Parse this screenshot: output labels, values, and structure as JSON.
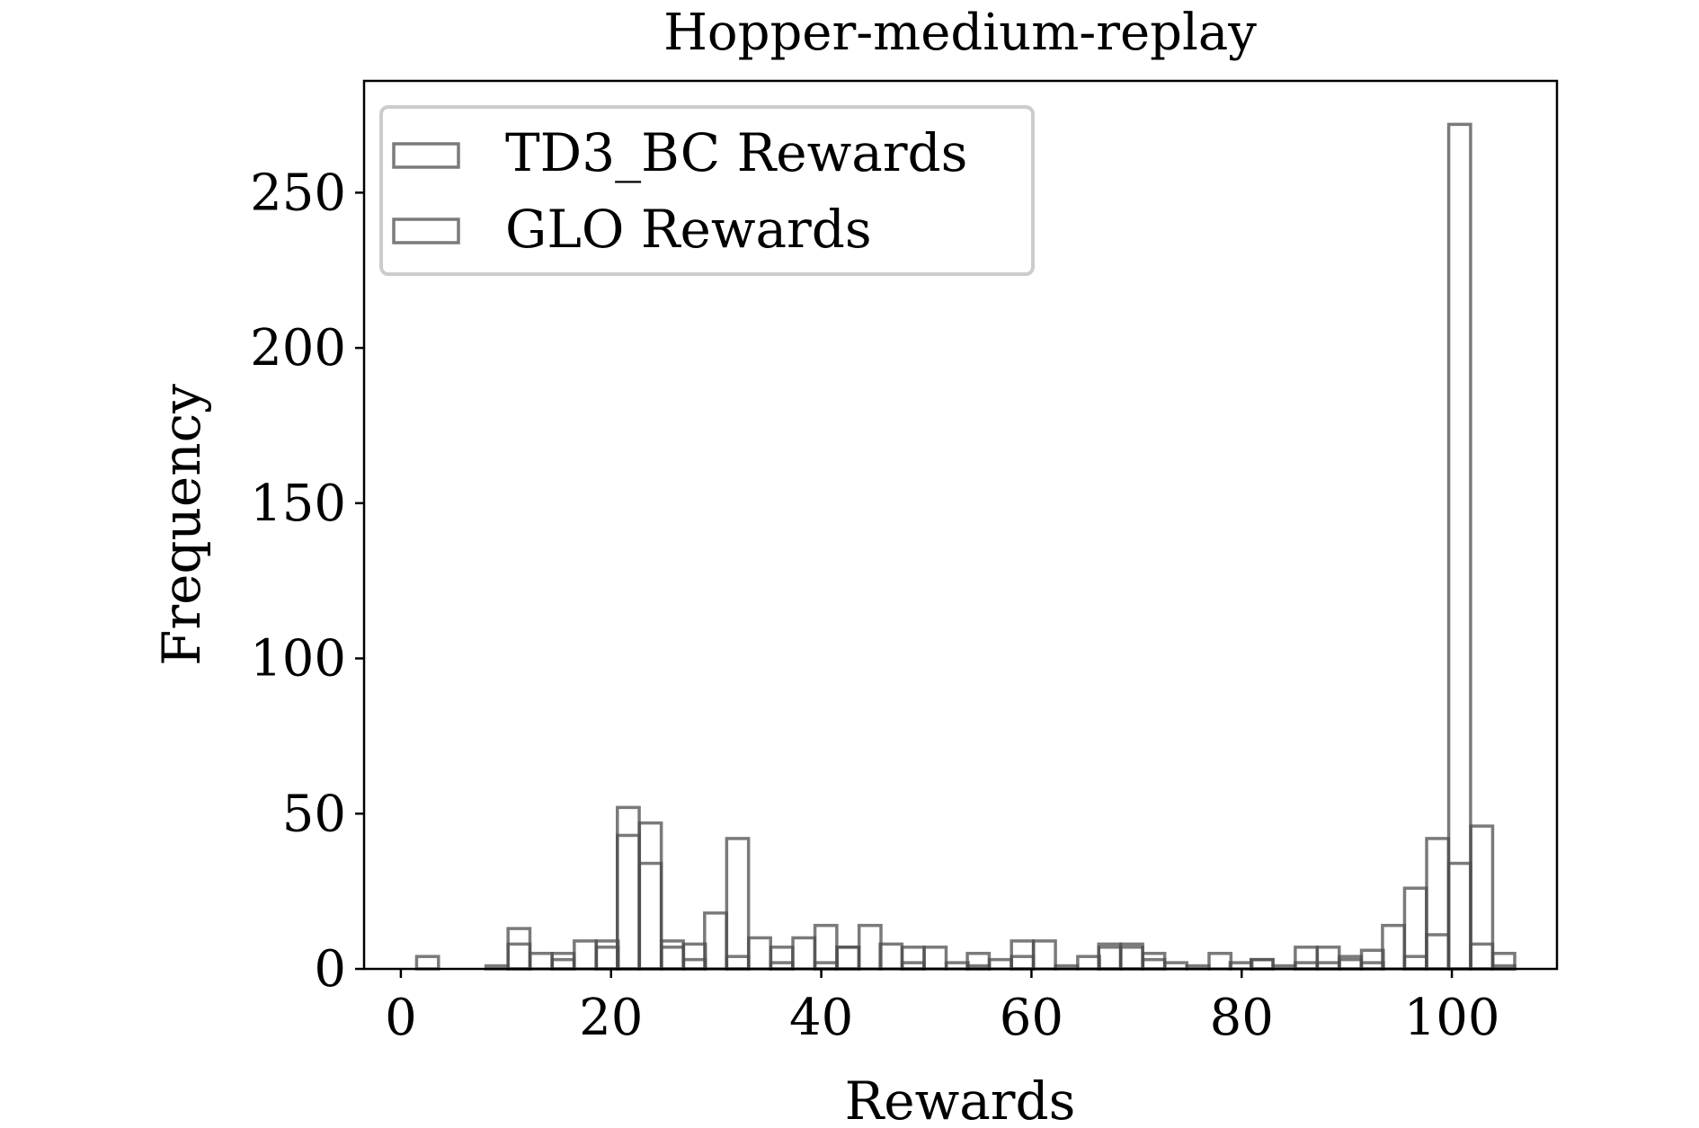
{
  "chart_data": {
    "type": "bar",
    "title": "Hopper-medium-replay",
    "xlabel": "Rewards",
    "ylabel": "Frequency",
    "xlim": [
      -3.5,
      110
    ],
    "ylim": [
      0,
      286
    ],
    "xticks": [
      "0",
      "20",
      "40",
      "60",
      "80",
      "100"
    ],
    "yticks": [
      "0",
      "50",
      "100",
      "150",
      "200",
      "250"
    ],
    "legend_position": "top-left",
    "bar_style": "unfilled outlined histogram bars, semi-transparent dark gray edges",
    "bin_width": 2.08,
    "series": [
      {
        "name": "TD3_BC Rewards",
        "color": "#4d4d4d",
        "bins": [
          [
            10.2,
            8
          ],
          [
            14.4,
            3
          ],
          [
            18.6,
            7
          ],
          [
            20.6,
            43
          ],
          [
            22.7,
            34
          ],
          [
            24.8,
            7
          ],
          [
            26.9,
            3
          ],
          [
            31.0,
            4
          ],
          [
            35.2,
            2
          ],
          [
            39.4,
            2
          ],
          [
            41.5,
            7
          ],
          [
            47.7,
            2
          ],
          [
            53.9,
            1
          ],
          [
            58.1,
            4
          ],
          [
            66.4,
            7
          ],
          [
            68.5,
            7
          ],
          [
            70.6,
            3
          ],
          [
            80.9,
            3
          ],
          [
            85.1,
            2
          ],
          [
            87.2,
            2
          ],
          [
            89.3,
            3
          ],
          [
            91.4,
            2
          ],
          [
            95.5,
            4
          ],
          [
            97.6,
            11
          ],
          [
            99.7,
            34
          ],
          [
            101.8,
            8
          ],
          [
            103.9,
            1
          ]
        ]
      },
      {
        "name": "GLO Rewards",
        "color": "#4d4d4d",
        "bins": [
          [
            1.5,
            4
          ],
          [
            8.1,
            1
          ],
          [
            10.2,
            13
          ],
          [
            12.3,
            5
          ],
          [
            14.4,
            5
          ],
          [
            16.5,
            9
          ],
          [
            18.6,
            9
          ],
          [
            20.6,
            52
          ],
          [
            22.7,
            47
          ],
          [
            24.8,
            9
          ],
          [
            26.9,
            8
          ],
          [
            28.9,
            18
          ],
          [
            31.0,
            42
          ],
          [
            33.1,
            10
          ],
          [
            35.2,
            7
          ],
          [
            37.3,
            10
          ],
          [
            39.4,
            14
          ],
          [
            41.5,
            7
          ],
          [
            43.6,
            14
          ],
          [
            45.6,
            8
          ],
          [
            47.7,
            7
          ],
          [
            49.8,
            7
          ],
          [
            51.9,
            2
          ],
          [
            53.9,
            5
          ],
          [
            56.0,
            3
          ],
          [
            58.1,
            9
          ],
          [
            60.2,
            9
          ],
          [
            62.3,
            1
          ],
          [
            64.4,
            4
          ],
          [
            66.4,
            8
          ],
          [
            68.5,
            8
          ],
          [
            70.6,
            5
          ],
          [
            72.7,
            2
          ],
          [
            74.8,
            1
          ],
          [
            76.9,
            5
          ],
          [
            78.9,
            2
          ],
          [
            80.9,
            3
          ],
          [
            83.0,
            1
          ],
          [
            85.1,
            7
          ],
          [
            87.2,
            7
          ],
          [
            89.3,
            4
          ],
          [
            91.4,
            6
          ],
          [
            93.4,
            14
          ],
          [
            95.5,
            26
          ],
          [
            97.6,
            42
          ],
          [
            99.7,
            272
          ],
          [
            101.8,
            46
          ],
          [
            103.9,
            5
          ]
        ]
      }
    ]
  }
}
